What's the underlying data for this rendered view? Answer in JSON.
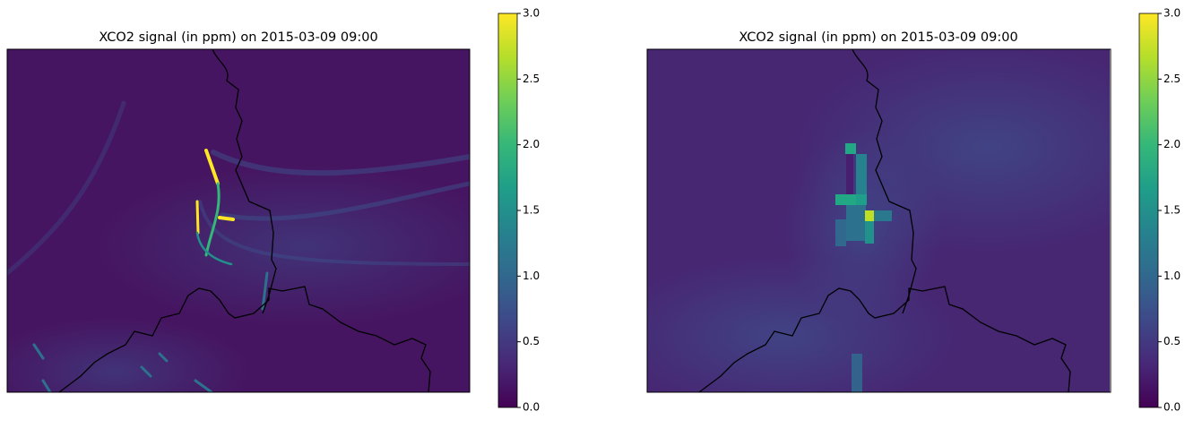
{
  "chart_data": [
    {
      "type": "heatmap",
      "title": "XCO2 signal (in ppm) on 2015-03-09 09:00",
      "colormap": "viridis",
      "clim": [
        0,
        3
      ],
      "cticks": [
        {
          "value": 0,
          "label": "0.0"
        },
        {
          "value": 0.5,
          "label": "0.5"
        },
        {
          "value": 1,
          "label": "1.0"
        },
        {
          "value": 1.5,
          "label": "1.5"
        },
        {
          "value": 2,
          "label": "2.0"
        },
        {
          "value": 2.5,
          "label": "2.5"
        },
        {
          "value": 3,
          "label": "3.0"
        }
      ]
    },
    {
      "type": "heatmap",
      "title": "XCO2 signal (in ppm) on 2015-03-09 09:00",
      "colormap": "viridis",
      "clim": [
        0,
        3
      ],
      "cticks": [
        {
          "value": 0,
          "label": "0.0"
        },
        {
          "value": 0.5,
          "label": "0.5"
        },
        {
          "value": 1,
          "label": "1.0"
        },
        {
          "value": 1.5,
          "label": "1.5"
        },
        {
          "value": 2,
          "label": "2.0"
        },
        {
          "value": 2.5,
          "label": "2.5"
        },
        {
          "value": 3,
          "label": "3.0"
        }
      ]
    }
  ]
}
